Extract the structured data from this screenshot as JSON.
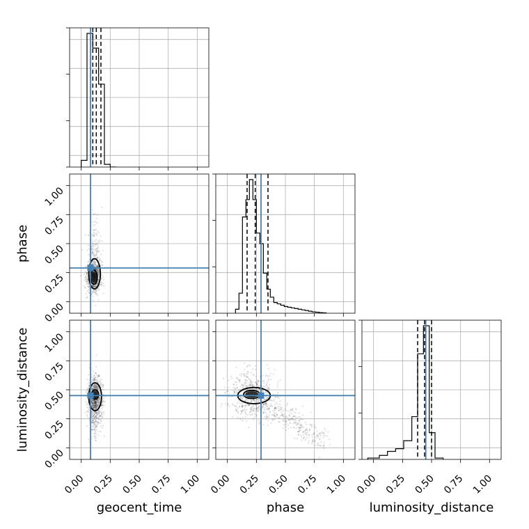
{
  "chart_data": {
    "type": "corner",
    "parameters": [
      "geocent_time",
      "phase",
      "luminosity_distance"
    ],
    "axis_range": [
      -0.1,
      1.1
    ],
    "ticks": [
      0.0,
      0.25,
      0.5,
      0.75,
      1.0
    ],
    "tick_labels": [
      "0.00",
      "0.25",
      "0.50",
      "0.75",
      "1.00"
    ],
    "grid": true,
    "truth_color": "#4682b4",
    "truth_values": {
      "geocent_time": 0.08,
      "phase": 0.29,
      "luminosity_distance": 0.45
    },
    "quantiles": {
      "geocent_time": [
        0.1,
        0.13,
        0.17
      ],
      "phase": [
        0.17,
        0.24,
        0.35
      ],
      "luminosity_distance": [
        0.38,
        0.44,
        0.5
      ]
    },
    "histograms": [
      {
        "parameter": "geocent_time",
        "bin_edges": [
          0.0,
          0.05,
          0.1,
          0.15,
          0.2,
          0.25,
          0.3
        ],
        "counts": [
          0.05,
          1.0,
          0.89,
          0.62,
          0.02,
          0.0
        ]
      },
      {
        "parameter": "phase",
        "bin_edges": [
          0.07,
          0.1,
          0.13,
          0.16,
          0.19,
          0.22,
          0.25,
          0.28,
          0.31,
          0.34,
          0.37,
          0.4,
          0.43,
          0.46,
          0.49,
          0.52,
          0.55,
          0.58,
          0.61,
          0.64,
          0.67,
          0.7,
          0.73,
          0.76,
          0.79,
          0.82,
          0.85
        ],
        "counts": [
          0.03,
          0.15,
          0.72,
          0.85,
          1.0,
          0.85,
          0.6,
          0.52,
          0.3,
          0.18,
          0.12,
          0.08,
          0.07,
          0.06,
          0.05,
          0.045,
          0.04,
          0.035,
          0.03,
          0.025,
          0.02,
          0.015,
          0.01,
          0.008,
          0.005,
          0.003
        ]
      },
      {
        "parameter": "luminosity_distance",
        "bin_edges": [
          -0.05,
          0.05,
          0.12,
          0.19,
          0.26,
          0.33,
          0.38,
          0.43,
          0.48,
          0.53,
          0.6
        ],
        "counts": [
          0.01,
          0.03,
          0.06,
          0.08,
          0.14,
          0.32,
          0.79,
          1.0,
          0.2,
          0.01
        ]
      }
    ],
    "joint_distributions": [
      {
        "x": "geocent_time",
        "y": "phase",
        "mode": [
          0.11,
          0.21
        ],
        "spread": [
          0.03,
          0.07
        ],
        "contours": [
          {
            "center": [
              0.11,
              0.21
            ],
            "radii": [
              0.028,
              0.06
            ]
          },
          {
            "center": [
              0.115,
              0.24
            ],
            "radii": [
              0.05,
              0.13
            ]
          }
        ]
      },
      {
        "x": "geocent_time",
        "y": "luminosity_distance",
        "mode": [
          0.12,
          0.44
        ],
        "spread": [
          0.03,
          0.1
        ],
        "contours": [
          {
            "center": [
              0.12,
              0.46
            ],
            "radii": [
              0.03,
              0.04
            ]
          },
          {
            "center": [
              0.12,
              0.44
            ],
            "radii": [
              0.055,
              0.12
            ]
          }
        ]
      },
      {
        "x": "phase",
        "y": "luminosity_distance",
        "mode": [
          0.22,
          0.45
        ],
        "spread": [
          0.1,
          0.1
        ],
        "contours": [
          {
            "center": [
              0.21,
              0.46
            ],
            "radii": [
              0.07,
              0.035
            ]
          },
          {
            "center": [
              0.23,
              0.45
            ],
            "radii": [
              0.14,
              0.07
            ]
          }
        ]
      }
    ]
  }
}
